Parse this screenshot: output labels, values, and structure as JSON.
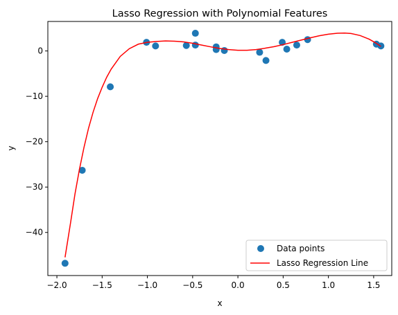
{
  "chart_data": {
    "type": "scatter",
    "title": "Lasso Regression with Polynomial Features",
    "xlabel": "x",
    "ylabel": "y",
    "xlim": [
      -2.1,
      1.7
    ],
    "ylim": [
      -49.5,
      6.5
    ],
    "grid": false,
    "legend_position": "lower-right",
    "x_ticks": [
      -2.0,
      -1.5,
      -1.0,
      -0.5,
      0.0,
      0.5,
      1.0,
      1.5
    ],
    "x_tick_labels": [
      "−2.0",
      "−1.5",
      "−1.0",
      "−0.5",
      "0.0",
      "0.5",
      "1.0",
      "1.5"
    ],
    "y_ticks": [
      0,
      -10,
      -20,
      -30,
      -40
    ],
    "y_tick_labels": [
      "0",
      "−10",
      "−20",
      "−30",
      "−40"
    ],
    "series": [
      {
        "name": "Data points",
        "kind": "scatter",
        "color": "#1f77b4",
        "points": [
          {
            "x": -1.91,
            "y": -46.8
          },
          {
            "x": -1.72,
            "y": -26.3
          },
          {
            "x": -1.41,
            "y": -7.9
          },
          {
            "x": -1.01,
            "y": 1.9
          },
          {
            "x": -0.91,
            "y": 1.1
          },
          {
            "x": -0.57,
            "y": 1.2
          },
          {
            "x": -0.47,
            "y": 1.3
          },
          {
            "x": -0.47,
            "y": 3.9
          },
          {
            "x": -0.24,
            "y": 0.9
          },
          {
            "x": -0.24,
            "y": 0.3
          },
          {
            "x": -0.15,
            "y": 0.1
          },
          {
            "x": 0.24,
            "y": -0.3
          },
          {
            "x": 0.31,
            "y": -2.1
          },
          {
            "x": 0.49,
            "y": 1.9
          },
          {
            "x": 0.54,
            "y": 0.4
          },
          {
            "x": 0.65,
            "y": 1.3
          },
          {
            "x": 0.77,
            "y": 2.5
          },
          {
            "x": 1.53,
            "y": 1.5
          },
          {
            "x": 1.58,
            "y": 1.1
          }
        ]
      },
      {
        "name": "Lasso Regression Line",
        "kind": "line",
        "color": "#ff0000",
        "points": [
          {
            "x": -1.91,
            "y": -45.5
          },
          {
            "x": -1.85,
            "y": -38.0
          },
          {
            "x": -1.8,
            "y": -31.5
          },
          {
            "x": -1.75,
            "y": -26.0
          },
          {
            "x": -1.7,
            "y": -21.2
          },
          {
            "x": -1.65,
            "y": -17.0
          },
          {
            "x": -1.6,
            "y": -13.5
          },
          {
            "x": -1.55,
            "y": -10.5
          },
          {
            "x": -1.5,
            "y": -8.0
          },
          {
            "x": -1.45,
            "y": -5.8
          },
          {
            "x": -1.4,
            "y": -4.0
          },
          {
            "x": -1.3,
            "y": -1.2
          },
          {
            "x": -1.2,
            "y": 0.5
          },
          {
            "x": -1.1,
            "y": 1.5
          },
          {
            "x": -1.0,
            "y": 1.9
          },
          {
            "x": -0.9,
            "y": 2.1
          },
          {
            "x": -0.8,
            "y": 2.2
          },
          {
            "x": -0.7,
            "y": 2.15
          },
          {
            "x": -0.6,
            "y": 2.0
          },
          {
            "x": -0.5,
            "y": 1.7
          },
          {
            "x": -0.4,
            "y": 1.3
          },
          {
            "x": -0.3,
            "y": 0.9
          },
          {
            "x": -0.2,
            "y": 0.55
          },
          {
            "x": -0.1,
            "y": 0.3
          },
          {
            "x": 0.0,
            "y": 0.15
          },
          {
            "x": 0.1,
            "y": 0.15
          },
          {
            "x": 0.2,
            "y": 0.3
          },
          {
            "x": 0.3,
            "y": 0.6
          },
          {
            "x": 0.4,
            "y": 0.95
          },
          {
            "x": 0.5,
            "y": 1.4
          },
          {
            "x": 0.6,
            "y": 1.9
          },
          {
            "x": 0.7,
            "y": 2.4
          },
          {
            "x": 0.8,
            "y": 2.9
          },
          {
            "x": 0.9,
            "y": 3.35
          },
          {
            "x": 1.0,
            "y": 3.7
          },
          {
            "x": 1.1,
            "y": 3.9
          },
          {
            "x": 1.18,
            "y": 3.95
          },
          {
            "x": 1.25,
            "y": 3.85
          },
          {
            "x": 1.35,
            "y": 3.4
          },
          {
            "x": 1.45,
            "y": 2.6
          },
          {
            "x": 1.52,
            "y": 1.8
          },
          {
            "x": 1.58,
            "y": 1.0
          }
        ]
      }
    ]
  }
}
